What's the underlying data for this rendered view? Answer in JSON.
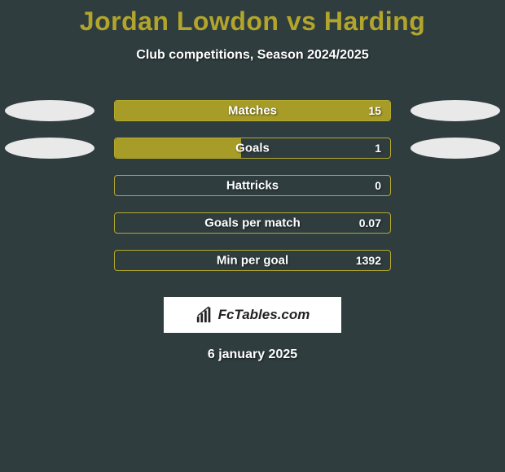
{
  "style": {
    "background_color": "#2f3d3f",
    "title_color": "#b2a52c",
    "text_color": "#ffffff",
    "ellipse_color": "#e9e9e9",
    "bar_border_color": "#b4a92d",
    "bar_fill_color": "#a79c28",
    "bar_text_color": "#ffffff",
    "logo_bg": "#ffffff",
    "logo_text_color": "#222222"
  },
  "header": {
    "title": "Jordan Lowdon vs Harding",
    "subtitle": "Club competitions, Season 2024/2025"
  },
  "stats": [
    {
      "label": "Matches",
      "value": "15",
      "fill_pct": 100,
      "show_ellipses": true
    },
    {
      "label": "Goals",
      "value": "1",
      "fill_pct": 46,
      "show_ellipses": true
    },
    {
      "label": "Hattricks",
      "value": "0",
      "fill_pct": 0,
      "show_ellipses": false
    },
    {
      "label": "Goals per match",
      "value": "0.07",
      "fill_pct": 0,
      "show_ellipses": false
    },
    {
      "label": "Min per goal",
      "value": "1392",
      "fill_pct": 0,
      "show_ellipses": false
    }
  ],
  "logo": {
    "text": "FcTables.com"
  },
  "footer": {
    "date": "6 january 2025"
  }
}
